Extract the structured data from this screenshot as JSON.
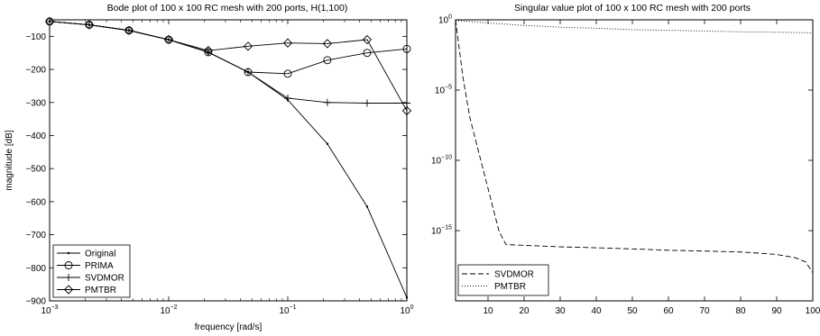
{
  "chart_data": [
    {
      "type": "line",
      "title": "Bode plot of 100 x 100 RC mesh with 200 ports, H(1,100)",
      "xlabel": "frequency [rad/s]",
      "ylabel": "magnitude [dB]",
      "xscale": "log",
      "xlim": [
        0.001,
        1
      ],
      "ylim": [
        -900,
        -50
      ],
      "grid": false,
      "legend_position": "bottom-left",
      "x_ticks": [
        {
          "value": 0.001,
          "base": "10",
          "exp": "−3"
        },
        {
          "value": 0.01,
          "base": "10",
          "exp": "−2"
        },
        {
          "value": 0.1,
          "base": "10",
          "exp": "−1"
        },
        {
          "value": 1,
          "base": "10",
          "exp": "0"
        }
      ],
      "y_ticks": [
        {
          "value": -100,
          "label": "−100"
        },
        {
          "value": -200,
          "label": "−200"
        },
        {
          "value": -300,
          "label": "−300"
        },
        {
          "value": -400,
          "label": "−400"
        },
        {
          "value": -500,
          "label": "−500"
        },
        {
          "value": -600,
          "label": "−600"
        },
        {
          "value": -700,
          "label": "−700"
        },
        {
          "value": -800,
          "label": "−800"
        },
        {
          "value": -900,
          "label": "−900"
        }
      ],
      "x": [
        0.001,
        0.00215,
        0.00464,
        0.01,
        0.0215,
        0.0464,
        0.1,
        0.215,
        0.464,
        1
      ],
      "series": [
        {
          "name": "Original",
          "marker": "dot",
          "values": [
            -55,
            -65,
            -82,
            -110,
            -148,
            -208,
            -292,
            -425,
            -615,
            -890
          ]
        },
        {
          "name": "PRIMA",
          "marker": "circle",
          "values": [
            -55,
            -65,
            -82,
            -110,
            -148,
            -208,
            -213,
            -172,
            -150,
            -138
          ]
        },
        {
          "name": "SVDMOR",
          "marker": "plus",
          "values": [
            -55,
            -65,
            -82,
            -110,
            -148,
            -208,
            -287,
            -300,
            -302,
            -302
          ]
        },
        {
          "name": "PMTBR",
          "marker": "diamond",
          "values": [
            -55,
            -65,
            -82,
            -110,
            -143,
            -130,
            -120,
            -122,
            -110,
            -325
          ]
        }
      ]
    },
    {
      "type": "line",
      "title": "Singular value plot of 100 x 100 RC mesh with 200 ports",
      "xlabel": "",
      "ylabel": "",
      "yscale": "log",
      "xlim": [
        1,
        100
      ],
      "ylim": [
        1e-20,
        1
      ],
      "grid": false,
      "legend_position": "bottom-left",
      "x_ticks": [
        {
          "value": 10,
          "label": "10"
        },
        {
          "value": 20,
          "label": "20"
        },
        {
          "value": 30,
          "label": "30"
        },
        {
          "value": 40,
          "label": "40"
        },
        {
          "value": 50,
          "label": "50"
        },
        {
          "value": 60,
          "label": "60"
        },
        {
          "value": 70,
          "label": "70"
        },
        {
          "value": 80,
          "label": "80"
        },
        {
          "value": 90,
          "label": "90"
        },
        {
          "value": 100,
          "label": "100"
        }
      ],
      "y_ticks": [
        {
          "value": 1,
          "base": "10",
          "exp": "0"
        },
        {
          "value": 1e-05,
          "base": "10",
          "exp": "−5"
        },
        {
          "value": 1e-10,
          "base": "10",
          "exp": "−10"
        },
        {
          "value": 1e-15,
          "base": "10",
          "exp": "−15"
        }
      ],
      "series": [
        {
          "name": "SVDMOR",
          "style": "dashed",
          "x": [
            1,
            2,
            3,
            4,
            5,
            6,
            7,
            8,
            9,
            10,
            11,
            12,
            13,
            14,
            15,
            20,
            30,
            40,
            50,
            60,
            70,
            80,
            85,
            90,
            95,
            98,
            100
          ],
          "values": [
            1,
            0.01,
            0.0001,
            3e-06,
            1e-07,
            1e-08,
            1e-09,
            1e-10,
            1e-11,
            1e-12,
            1e-13,
            1e-14,
            1e-15,
            3e-16,
            1e-16,
            9e-17,
            7e-17,
            6e-17,
            5e-17,
            4e-17,
            3.5e-17,
            3e-17,
            2.5e-17,
            2e-17,
            1.2e-17,
            6e-18,
            1e-18
          ]
        },
        {
          "name": "PMTBR",
          "style": "dotted",
          "x": [
            1,
            10,
            20,
            30,
            40,
            50,
            60,
            70,
            80,
            90,
            100
          ],
          "values": [
            0.9,
            0.6,
            0.4,
            0.3,
            0.25,
            0.2,
            0.18,
            0.16,
            0.14,
            0.13,
            0.12
          ]
        }
      ]
    }
  ]
}
